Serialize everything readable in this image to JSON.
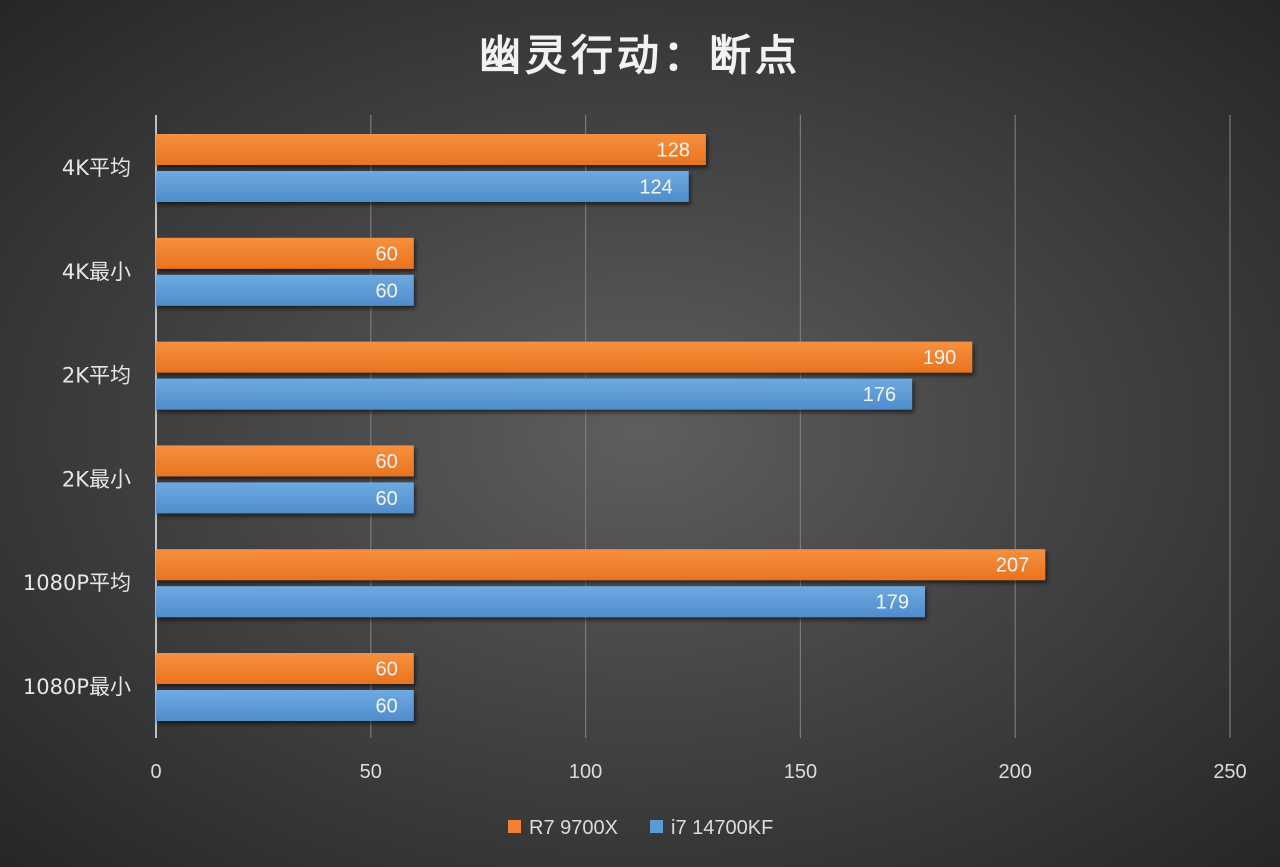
{
  "chart_data": {
    "type": "bar",
    "orientation": "horizontal",
    "title": "幽灵行动：断点",
    "categories": [
      "4K平均",
      "4K最小",
      "2K平均",
      "2K最小",
      "1080P平均",
      "1080P最小"
    ],
    "series": [
      {
        "name": "R7 9700X",
        "color": "#f0812f",
        "values": [
          128,
          60,
          190,
          60,
          207,
          60
        ]
      },
      {
        "name": "i7 14700KF",
        "color": "#5b9bd5",
        "values": [
          124,
          60,
          176,
          60,
          179,
          60
        ]
      }
    ],
    "xlim": [
      0,
      250
    ],
    "xticks": [
      0,
      50,
      100,
      150,
      200,
      250
    ],
    "xlabel": "",
    "ylabel": "",
    "grid": true,
    "legend": "bottom",
    "data_labels": true
  }
}
